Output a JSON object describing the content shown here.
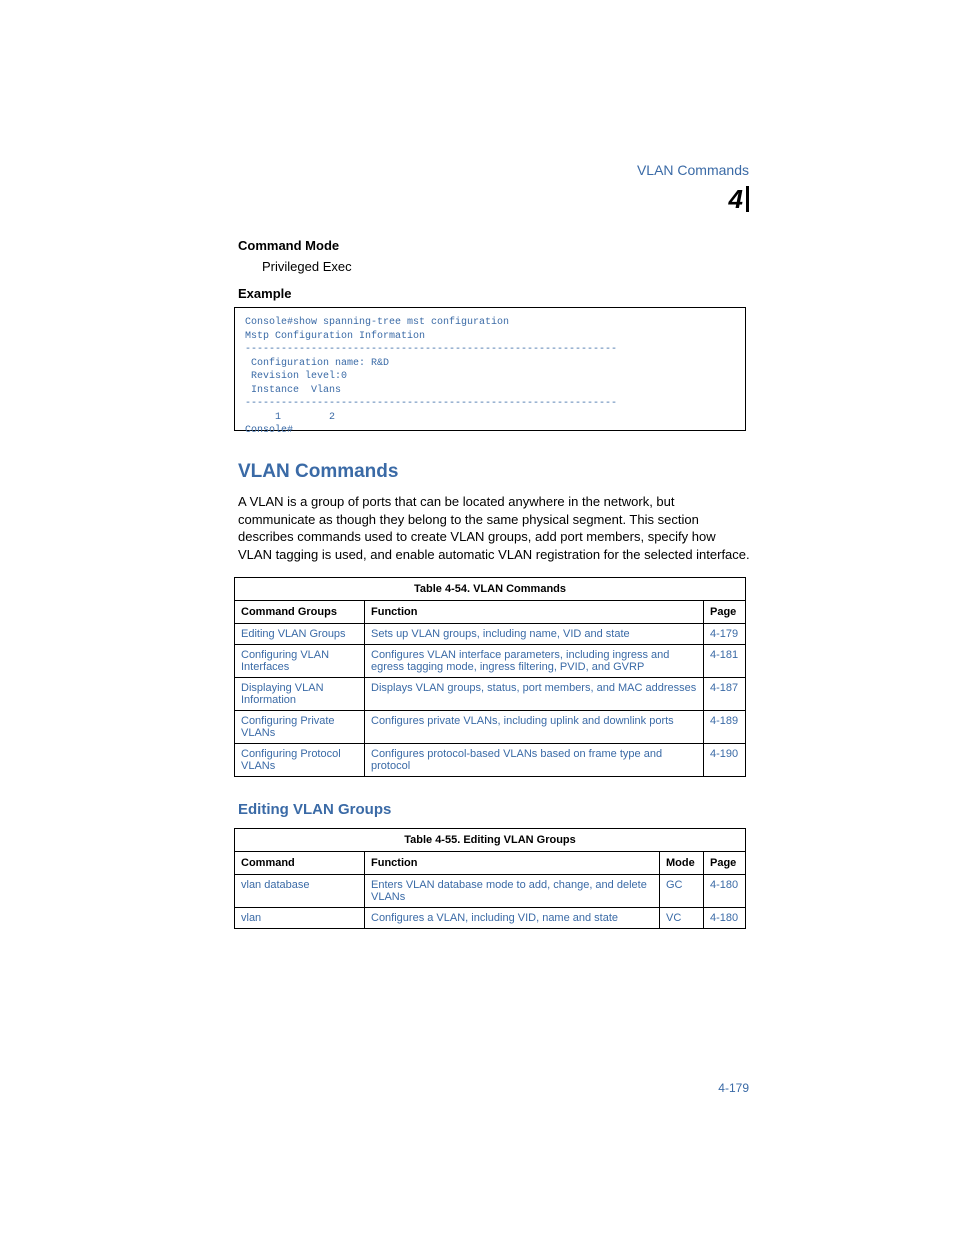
{
  "header": {
    "title": "VLAN Commands",
    "chapter_number": "4"
  },
  "section1": {
    "heading": "Command Mode",
    "text": "Privileged Exec"
  },
  "section2": {
    "heading": "Example",
    "code": "Console#show spanning-tree mst configuration\nMstp Configuration Information\n--------------------------------------------------------------\n Configuration name: R&D\n Revision level:0\n Instance  Vlans\n--------------------------------------------------------------\n     1        2\nConsole#"
  },
  "main_heading": "VLAN Commands",
  "intro": "A VLAN is a group of ports that can be located anywhere in the network, but communicate as though they belong to the same physical segment. This section describes commands used to create VLAN groups, add port members, specify how VLAN tagging is used, and enable automatic VLAN registration for the selected interface.",
  "table54": {
    "caption": "Table 4-54.  VLAN Commands",
    "columns": [
      "Command Groups",
      "Function",
      "Page"
    ],
    "col_widths": [
      "130px",
      "auto",
      "42px"
    ],
    "rows": [
      [
        "Editing VLAN Groups",
        "Sets up VLAN groups, including name, VID and state",
        "4-179"
      ],
      [
        "Configuring VLAN Interfaces",
        "Configures VLAN interface parameters, including ingress and egress tagging mode, ingress filtering, PVID, and GVRP",
        "4-181"
      ],
      [
        "Displaying VLAN Information",
        "Displays VLAN groups, status, port members, and MAC addresses",
        "4-187"
      ],
      [
        "Configuring Private VLANs",
        "Configures private VLANs, including uplink and downlink ports",
        "4-189"
      ],
      [
        "Configuring Protocol VLANs",
        "Configures protocol-based VLANs based on frame type and protocol",
        "4-190"
      ]
    ]
  },
  "subsection_heading": "Editing VLAN Groups",
  "table55": {
    "caption": "Table 4-55.  Editing VLAN Groups",
    "columns": [
      "Command",
      "Function",
      "Mode",
      "Page"
    ],
    "col_widths": [
      "130px",
      "auto",
      "44px",
      "42px"
    ],
    "rows": [
      [
        "vlan database",
        "Enters VLAN database mode to add, change, and delete VLANs",
        "GC",
        "4-180"
      ],
      [
        "vlan",
        "Configures a VLAN, including VID, name and state",
        "VC",
        "4-180"
      ]
    ]
  },
  "footer": "4-179"
}
